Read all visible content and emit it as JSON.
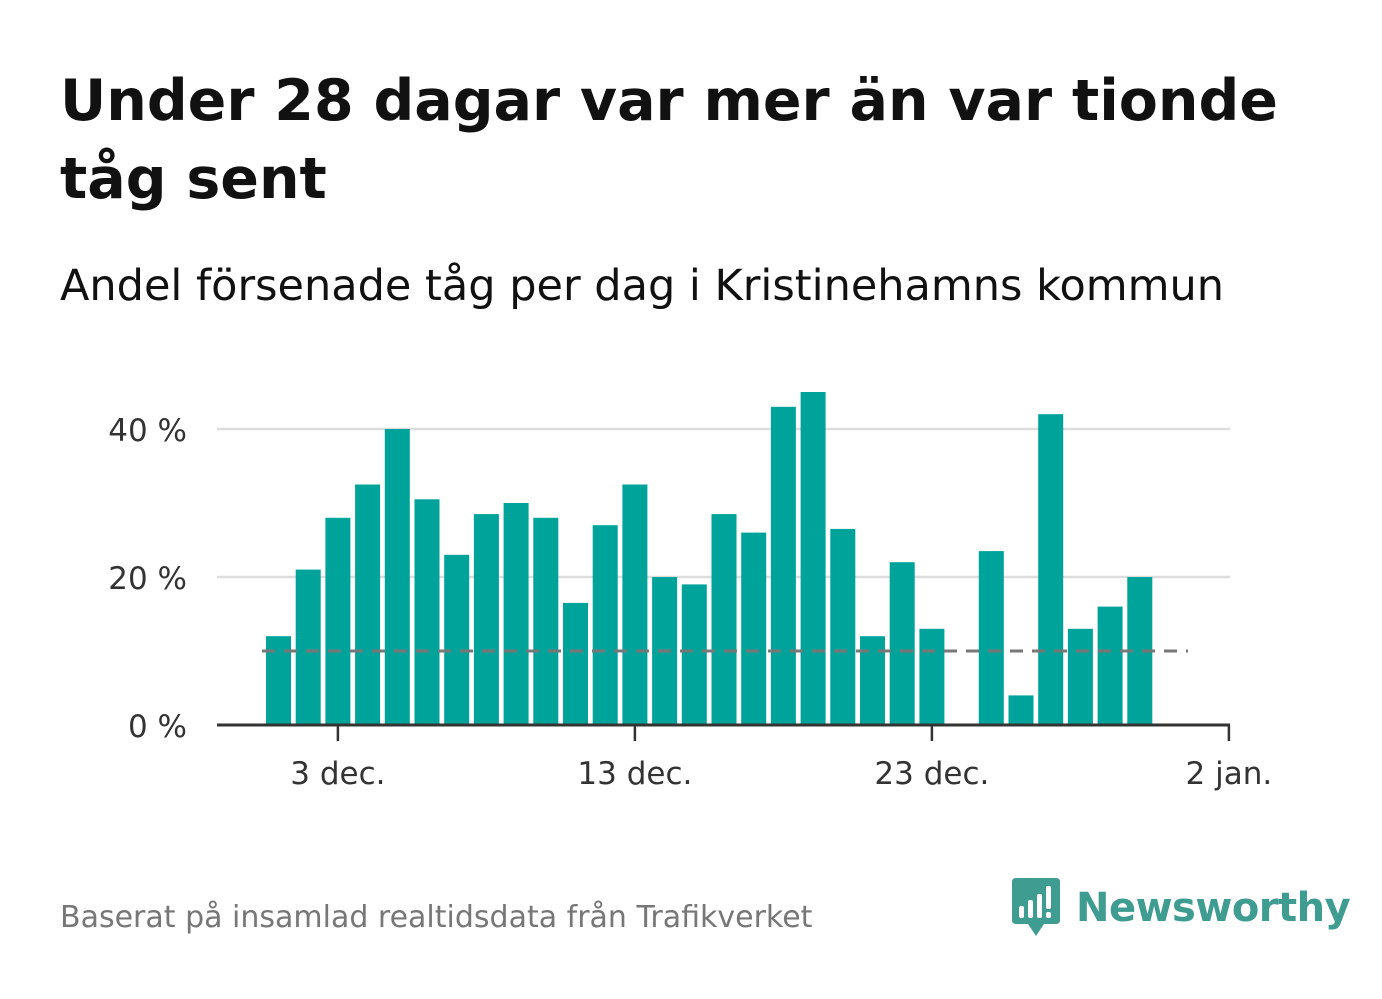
{
  "title": "Under 28 dagar var mer än var tionde tåg sent",
  "subtitle": "Andel försenade tåg per dag i Kristinehamns kommun",
  "source": "Baserat på insamlad realtidsdata från Trafikverket",
  "logo": {
    "text": "Newsworthy",
    "icon": "newsworthy-bar-chart-speech-bubble-icon"
  },
  "colors": {
    "bar": "#00a39a",
    "reference_line": "#777777",
    "gridline": "#dddddd",
    "axis": "#333333",
    "logo": "#3e9c91"
  },
  "chart_data": {
    "type": "bar",
    "x_start_date": "1 dec.",
    "x": [
      "1 dec.",
      "2 dec.",
      "3 dec.",
      "4 dec.",
      "5 dec.",
      "6 dec.",
      "7 dec.",
      "8 dec.",
      "9 dec.",
      "10 dec.",
      "11 dec.",
      "12 dec.",
      "13 dec.",
      "14 dec.",
      "15 dec.",
      "16 dec.",
      "17 dec.",
      "18 dec.",
      "19 dec.",
      "20 dec.",
      "21 dec.",
      "22 dec.",
      "23 dec.",
      "24 dec.",
      "25 dec.",
      "26 dec.",
      "27 dec.",
      "28 dec.",
      "29 dec.",
      "30 dec."
    ],
    "values": [
      12,
      21,
      28,
      32.5,
      40,
      30.5,
      23,
      28.5,
      30,
      28,
      16.5,
      27,
      32.5,
      20,
      19,
      28.5,
      26,
      43,
      45,
      26.5,
      12,
      22,
      13,
      null,
      23.5,
      4,
      42,
      13,
      16,
      20
    ],
    "reference_line": 10,
    "ylim": [
      0,
      45
    ],
    "yticks": [
      0,
      20,
      40
    ],
    "ytick_labels": [
      "0 %",
      "20 %",
      "40 %"
    ],
    "xticks": [
      "3 dec.",
      "13 dec.",
      "23 dec.",
      "2 jan."
    ],
    "xlabel": "",
    "ylabel": "",
    "grid": true
  }
}
